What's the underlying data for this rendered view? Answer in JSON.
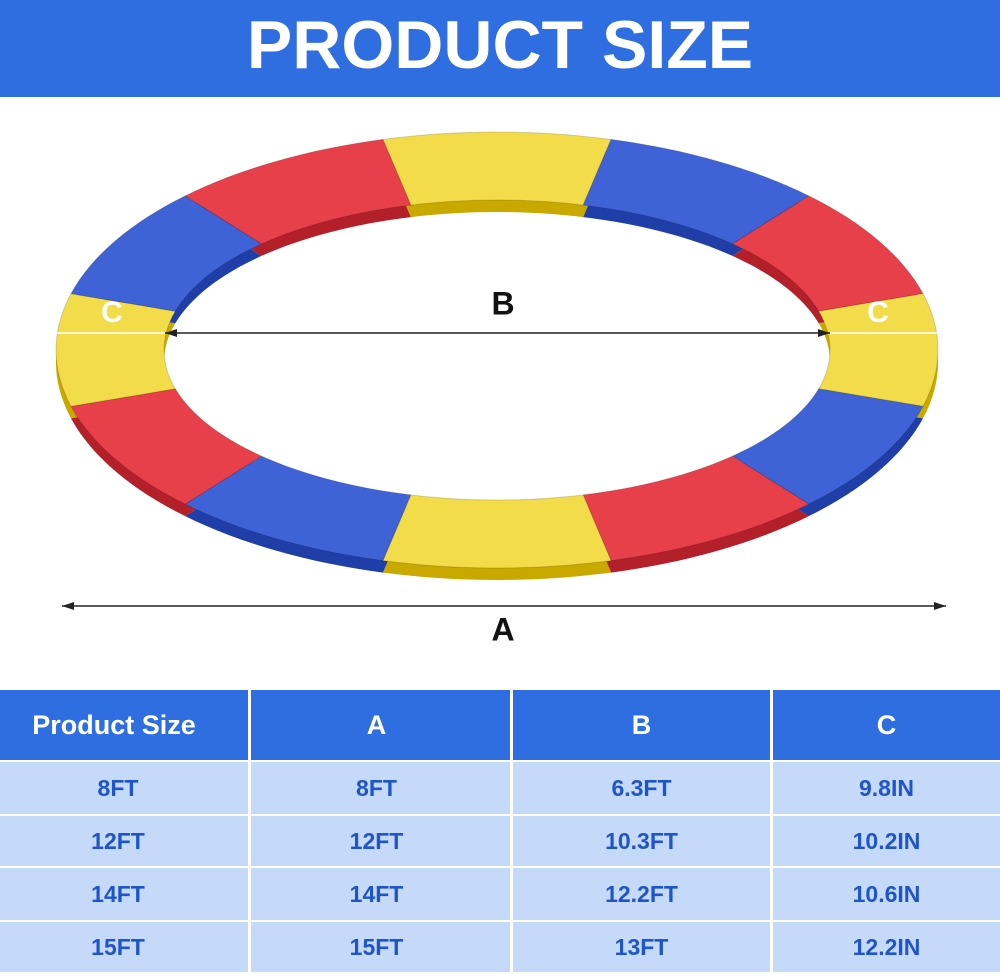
{
  "header": {
    "title": "PRODUCT SIZE"
  },
  "diagram": {
    "label_a": "A",
    "label_b": "B",
    "label_c": "C"
  },
  "table": {
    "columns": [
      "Product Size",
      "A",
      "B",
      "C"
    ],
    "rows": [
      [
        "8FT",
        "8FT",
        "6.3FT",
        "9.8IN"
      ],
      [
        "12FT",
        "12FT",
        "10.3FT",
        "10.2IN"
      ],
      [
        "14FT",
        "14FT",
        "12.2FT",
        "10.6IN"
      ],
      [
        "15FT",
        "15FT",
        "13FT",
        "12.2IN"
      ]
    ]
  }
}
